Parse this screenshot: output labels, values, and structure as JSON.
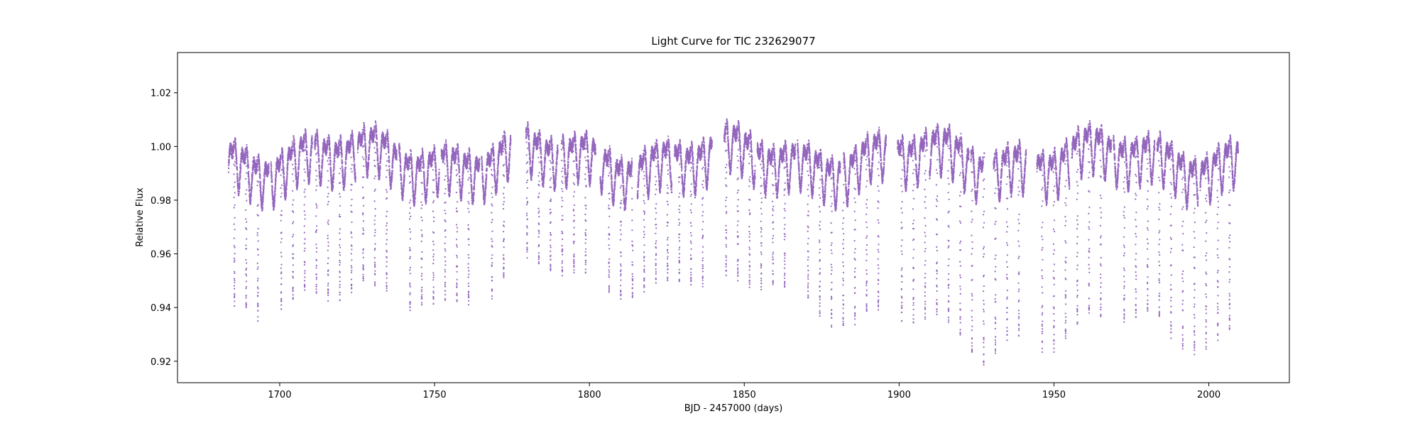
{
  "chart_data": {
    "type": "scatter",
    "title": "Light Curve for TIC 232629077",
    "xlabel": "BJD - 2457000 (days)",
    "ylabel": "Relative Flux",
    "xlim": [
      1667,
      2026
    ],
    "ylim": [
      0.912,
      1.035
    ],
    "xticks": [
      1700,
      1750,
      1800,
      1850,
      1900,
      1950,
      2000
    ],
    "yticks": [
      0.92,
      0.94,
      0.96,
      0.98,
      1.0,
      1.02
    ],
    "ytick_labels": [
      "0.92",
      "0.94",
      "0.96",
      "0.98",
      "1.00",
      "1.02"
    ],
    "grid": false,
    "marker_color": "#9467bd",
    "series": [
      {
        "x_range": [
          1683.5,
          2009.5
        ],
        "period_days": 3.78,
        "baseline": 0.995,
        "amplitude": 0.012,
        "eclipse_min_typical": 0.937,
        "gaps": [
          [
            1696.5,
            1697.2
          ],
          [
            1710.5,
            1711.3
          ],
          [
            1724.5,
            1725.2
          ],
          [
            1737.8,
            1738.5
          ],
          [
            1751.5,
            1752.2
          ],
          [
            1764.5,
            1765.2
          ],
          [
            1774.6,
            1779.5
          ],
          [
            1789.8,
            1791.0
          ],
          [
            1802.0,
            1803.5
          ],
          [
            1814.0,
            1815.5
          ],
          [
            1826.6,
            1827.5
          ],
          [
            1839.6,
            1843.5
          ],
          [
            1853.5,
            1854.2
          ],
          [
            1866.5,
            1867.2
          ],
          [
            1881.0,
            1881.8
          ],
          [
            1895.8,
            1899.5
          ],
          [
            1909.0,
            1909.8
          ],
          [
            1922.5,
            1923.2
          ],
          [
            1927.5,
            1930.5
          ],
          [
            1941.0,
            1944.5
          ],
          [
            1955.0,
            1955.8
          ],
          [
            1968.5,
            1969.2
          ],
          [
            1982.5,
            1983.3
          ],
          [
            1996.5,
            1997.2
          ]
        ],
        "eclipse_depth_profile": [
          [
            1683.5,
            0.936
          ],
          [
            1720,
            0.937
          ],
          [
            1745,
            0.938
          ],
          [
            1770,
            0.94
          ],
          [
            1780,
            0.948
          ],
          [
            1795,
            0.945
          ],
          [
            1810,
            0.943
          ],
          [
            1830,
            0.945
          ],
          [
            1850,
            0.938
          ],
          [
            1860,
            0.946
          ],
          [
            1875,
            0.935
          ],
          [
            1890,
            0.93
          ],
          [
            1905,
            0.928
          ],
          [
            1915,
            0.925
          ],
          [
            1922,
            0.92
          ],
          [
            1927,
            0.918
          ],
          [
            1935,
            0.924
          ],
          [
            1950,
            0.922
          ],
          [
            1965,
            0.926
          ],
          [
            1980,
            0.93
          ],
          [
            1990,
            0.922
          ],
          [
            2000,
            0.925
          ],
          [
            2009.5,
            0.926
          ]
        ]
      }
    ]
  }
}
